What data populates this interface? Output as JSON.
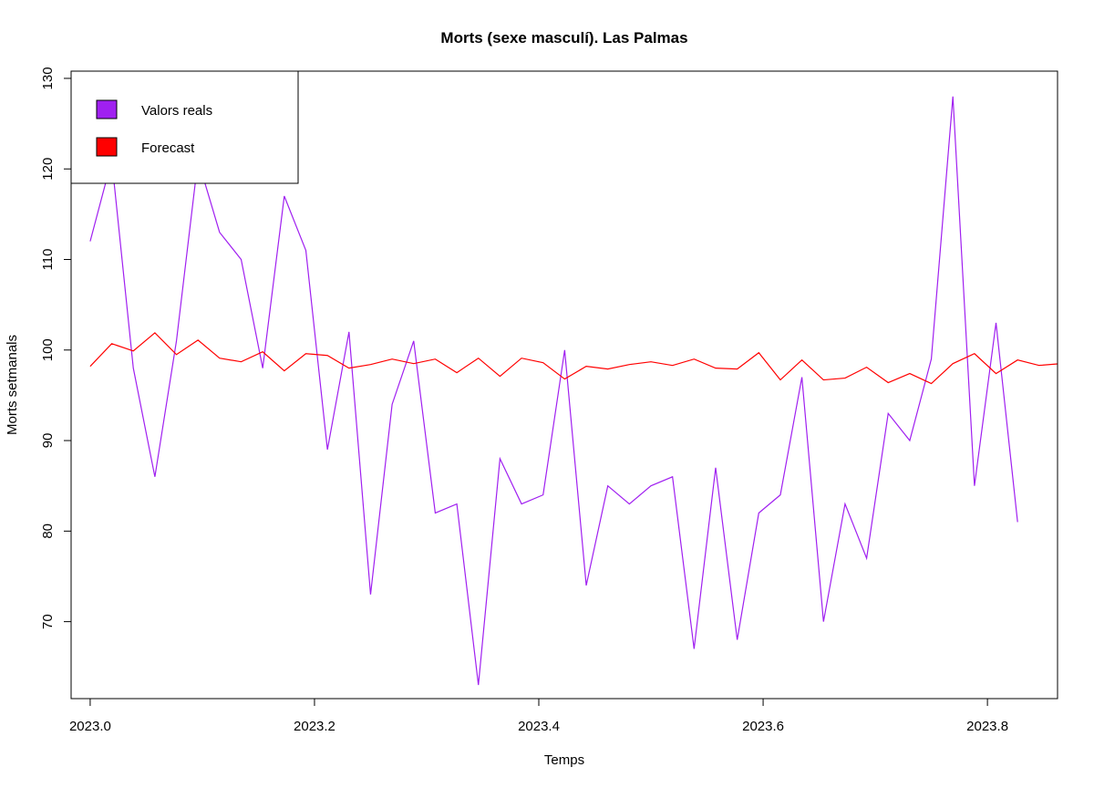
{
  "chart_data": {
    "type": "line",
    "title": "Morts (sexe masculí). Las Palmas",
    "xlabel": "Temps",
    "ylabel": "Morts setmanals",
    "xlim": [
      2022.983,
      2023.8625
    ],
    "ylim": [
      61.5,
      130.8
    ],
    "x_ticks": [
      2023.0,
      2023.2,
      2023.4,
      2023.6,
      2023.8
    ],
    "x_tick_labels": [
      "2023.0",
      "2023.2",
      "2023.4",
      "2023.6",
      "2023.8"
    ],
    "y_ticks": [
      70,
      80,
      90,
      100,
      110,
      120,
      130
    ],
    "y_tick_labels": [
      "70",
      "80",
      "90",
      "100",
      "110",
      "120",
      "130"
    ],
    "x_start": 2023.0,
    "x_step": 0.01923,
    "legend": {
      "position": "top-left",
      "entries": [
        {
          "label": "Valors reals",
          "color": "#a020f0"
        },
        {
          "label": "Forecast",
          "color": "#ff0000"
        }
      ]
    },
    "series": [
      {
        "name": "Valors reals",
        "color": "#a020f0",
        "values": [
          112,
          121,
          98,
          86,
          101,
          121,
          113,
          110,
          98,
          117,
          111,
          89,
          102,
          73,
          94,
          101,
          82,
          83,
          63,
          88,
          83,
          84,
          100,
          74,
          85,
          83,
          85,
          86,
          67,
          87,
          68,
          82,
          84,
          97,
          70,
          83,
          77,
          93,
          90,
          99,
          128,
          85,
          103,
          81
        ]
      },
      {
        "name": "Forecast",
        "color": "#ff0000",
        "values": [
          98.2,
          100.7,
          99.9,
          101.9,
          99.5,
          101.1,
          99.1,
          98.7,
          99.8,
          97.7,
          99.6,
          99.4,
          98.0,
          98.4,
          99.0,
          98.5,
          99.0,
          97.5,
          99.1,
          97.1,
          99.1,
          98.6,
          96.8,
          98.2,
          97.9,
          98.4,
          98.7,
          98.3,
          99.0,
          98.0,
          97.9,
          99.7,
          96.7,
          98.9,
          96.7,
          96.9,
          98.1,
          96.4,
          97.4,
          96.3,
          98.5,
          99.6,
          97.4,
          98.9,
          98.3,
          98.5
        ]
      }
    ]
  }
}
